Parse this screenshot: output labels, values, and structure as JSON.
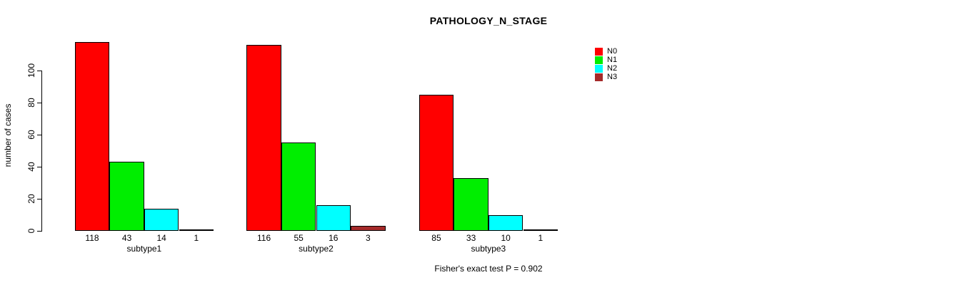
{
  "title": "PATHOLOGY_N_STAGE",
  "y_axis": {
    "label": "number of cases",
    "ticks": [
      0,
      20,
      40,
      60,
      80,
      100
    ]
  },
  "footer": "Fisher's exact test P = 0.902",
  "chart_data": {
    "type": "bar",
    "title": "PATHOLOGY_N_STAGE",
    "xlabel": "",
    "ylabel": "number of cases",
    "ylim": [
      0,
      118
    ],
    "yticks": [
      0,
      20,
      40,
      60,
      80,
      100
    ],
    "grid": false,
    "legend_position": "top-right",
    "categories": [
      "subtype1",
      "subtype2",
      "subtype3"
    ],
    "series": [
      {
        "name": "N0",
        "color": "#FF0000",
        "values": [
          118,
          116,
          85
        ]
      },
      {
        "name": "N1",
        "color": "#00EE00",
        "values": [
          43,
          55,
          33
        ]
      },
      {
        "name": "N2",
        "color": "#00FFFF",
        "values": [
          14,
          16,
          10
        ]
      },
      {
        "name": "N3",
        "color": "#A52A2A",
        "values": [
          1,
          3,
          1
        ]
      }
    ],
    "bar_value_labels": true,
    "annotation": "Fisher's exact test P = 0.902"
  }
}
